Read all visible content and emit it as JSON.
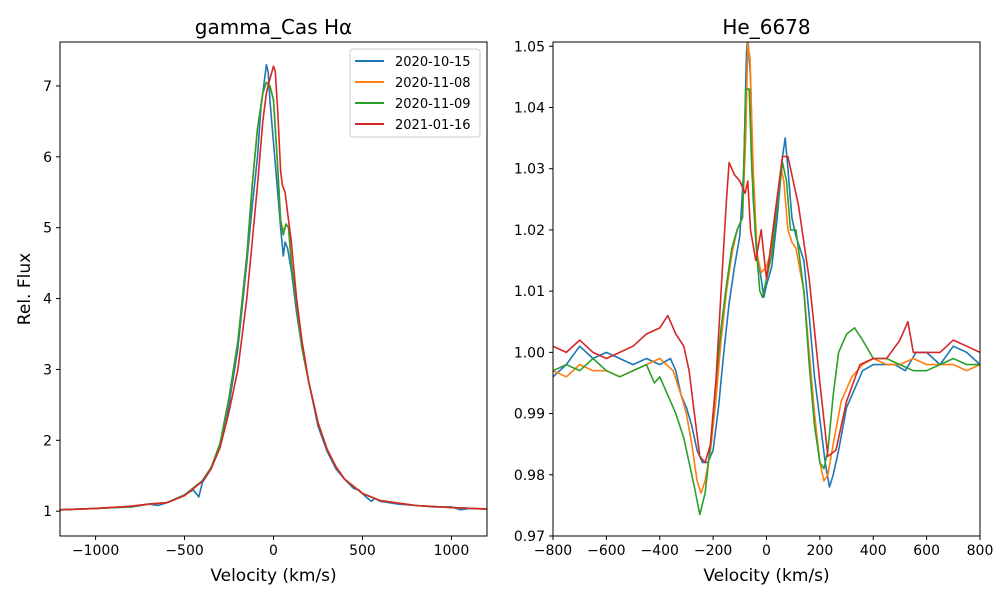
{
  "chart_data": [
    {
      "type": "line",
      "title": "gamma_Cas Hα",
      "xlabel": "Velocity (km/s)",
      "ylabel": "Rel. Flux",
      "xlim": [
        -1200,
        1200
      ],
      "ylim": [
        0.65,
        7.62
      ],
      "xticks": [
        -1000,
        -500,
        0,
        500,
        1000
      ],
      "xtick_labels": [
        "−1000",
        "−500",
        "0",
        "500",
        "1000"
      ],
      "yticks": [
        1,
        2,
        3,
        4,
        5,
        6,
        7
      ],
      "ytick_labels": [
        "1",
        "2",
        "3",
        "4",
        "5",
        "6",
        "7"
      ],
      "grid": false,
      "legend": "top-right",
      "series": [
        {
          "name": "2020-10-15",
          "color": "#1f77b4",
          "x": [
            -1200,
            -1000,
            -900,
            -800,
            -700,
            -650,
            -600,
            -500,
            -450,
            -420,
            -400,
            -350,
            -300,
            -250,
            -200,
            -150,
            -120,
            -90,
            -70,
            -50,
            -40,
            -30,
            -20,
            0,
            20,
            40,
            55,
            65,
            80,
            100,
            130,
            160,
            200,
            250,
            300,
            350,
            400,
            450,
            480,
            520,
            550,
            570,
            600,
            700,
            800,
            900,
            1000,
            1050,
            1100,
            1200
          ],
          "y": [
            1.02,
            1.04,
            1.05,
            1.06,
            1.1,
            1.08,
            1.12,
            1.23,
            1.3,
            1.2,
            1.4,
            1.6,
            1.95,
            2.5,
            3.3,
            4.5,
            5.3,
            6.0,
            6.7,
            7.1,
            7.3,
            7.2,
            6.8,
            6.2,
            5.6,
            5.0,
            4.6,
            4.8,
            4.7,
            4.4,
            3.8,
            3.3,
            2.8,
            2.2,
            1.85,
            1.6,
            1.45,
            1.32,
            1.3,
            1.2,
            1.14,
            1.18,
            1.14,
            1.1,
            1.08,
            1.06,
            1.06,
            1.02,
            1.04,
            1.03
          ]
        },
        {
          "name": "2020-11-08",
          "color": "#ff7f0e",
          "x": [
            -1200,
            -1000,
            -800,
            -700,
            -600,
            -500,
            -400,
            -350,
            -300,
            -250,
            -200,
            -150,
            -120,
            -90,
            -60,
            -40,
            -20,
            0,
            20,
            40,
            55,
            70,
            85,
            100,
            130,
            160,
            200,
            250,
            300,
            350,
            400,
            500,
            600,
            800,
            1000,
            1200
          ],
          "y": [
            1.02,
            1.04,
            1.07,
            1.1,
            1.12,
            1.22,
            1.42,
            1.62,
            1.95,
            2.6,
            3.4,
            4.6,
            5.6,
            6.4,
            6.9,
            7.05,
            7.0,
            6.8,
            6.0,
            5.1,
            4.95,
            5.05,
            5.0,
            4.5,
            3.9,
            3.3,
            2.8,
            2.25,
            1.88,
            1.63,
            1.45,
            1.25,
            1.15,
            1.08,
            1.05,
            1.03
          ]
        },
        {
          "name": "2020-11-09",
          "color": "#2ca02c",
          "x": [
            -1200,
            -1000,
            -800,
            -700,
            -600,
            -500,
            -400,
            -350,
            -300,
            -250,
            -200,
            -150,
            -120,
            -90,
            -60,
            -40,
            -20,
            0,
            20,
            40,
            55,
            70,
            85,
            100,
            130,
            160,
            200,
            250,
            300,
            350,
            400,
            500,
            600,
            800,
            1000,
            1200
          ],
          "y": [
            1.02,
            1.04,
            1.06,
            1.1,
            1.12,
            1.23,
            1.43,
            1.62,
            1.96,
            2.6,
            3.4,
            4.6,
            5.6,
            6.4,
            6.9,
            7.05,
            7.0,
            6.8,
            6.0,
            5.1,
            4.9,
            5.05,
            5.0,
            4.5,
            3.9,
            3.3,
            2.8,
            2.25,
            1.88,
            1.63,
            1.45,
            1.25,
            1.15,
            1.08,
            1.05,
            1.03
          ]
        },
        {
          "name": "2021-01-16",
          "color": "#d62728",
          "x": [
            -1200,
            -1000,
            -800,
            -700,
            -600,
            -500,
            -400,
            -350,
            -300,
            -250,
            -200,
            -150,
            -120,
            -90,
            -60,
            -40,
            -20,
            0,
            10,
            25,
            40,
            50,
            65,
            80,
            100,
            130,
            160,
            200,
            250,
            300,
            350,
            400,
            500,
            600,
            800,
            1000,
            1200
          ],
          "y": [
            1.02,
            1.04,
            1.07,
            1.1,
            1.12,
            1.22,
            1.42,
            1.6,
            1.9,
            2.4,
            3.0,
            4.0,
            4.8,
            5.6,
            6.5,
            6.9,
            7.1,
            7.28,
            7.2,
            6.6,
            5.8,
            5.6,
            5.5,
            5.2,
            4.8,
            4.0,
            3.4,
            2.8,
            2.25,
            1.88,
            1.63,
            1.45,
            1.25,
            1.15,
            1.08,
            1.05,
            1.03
          ]
        }
      ]
    },
    {
      "type": "line",
      "title": "He_6678",
      "xlabel": "Velocity (km/s)",
      "ylabel": "",
      "xlim": [
        -800,
        800
      ],
      "ylim": [
        0.97,
        1.0507
      ],
      "xticks": [
        -800,
        -600,
        -400,
        -200,
        0,
        200,
        400,
        600,
        800
      ],
      "xtick_labels": [
        "−800",
        "−600",
        "−400",
        "−200",
        "0",
        "200",
        "400",
        "600",
        "800"
      ],
      "yticks": [
        0.97,
        0.98,
        0.99,
        1.0,
        1.01,
        1.02,
        1.03,
        1.04,
        1.05
      ],
      "ytick_labels": [
        "0.97",
        "0.98",
        "0.99",
        "1.00",
        "1.01",
        "1.02",
        "1.03",
        "1.04",
        "1.05"
      ],
      "grid": false,
      "series": [
        {
          "name": "2020-10-15",
          "color": "#1f77b4",
          "x": [
            -800,
            -750,
            -700,
            -650,
            -600,
            -550,
            -500,
            -450,
            -400,
            -360,
            -340,
            -320,
            -300,
            -280,
            -260,
            -240,
            -220,
            -200,
            -180,
            -160,
            -140,
            -120,
            -100,
            -85,
            -75,
            -70,
            -60,
            -50,
            -35,
            -20,
            -10,
            0,
            20,
            40,
            60,
            70,
            80,
            95,
            110,
            140,
            160,
            180,
            200,
            220,
            236,
            250,
            270,
            300,
            330,
            360,
            400,
            440,
            480,
            520,
            560,
            600,
            650,
            700,
            750,
            800
          ],
          "y": [
            0.996,
            0.998,
            1.001,
            0.999,
            1.0,
            0.999,
            0.998,
            0.999,
            0.998,
            0.999,
            0.997,
            0.993,
            0.991,
            0.988,
            0.984,
            0.982,
            0.982,
            0.984,
            0.991,
            1.0,
            1.008,
            1.014,
            1.019,
            1.03,
            1.049,
            1.0515,
            1.045,
            1.025,
            1.016,
            1.012,
            1.009,
            1.011,
            1.014,
            1.022,
            1.032,
            1.035,
            1.03,
            1.022,
            1.019,
            1.015,
            1.006,
            0.996,
            0.989,
            0.982,
            0.978,
            0.98,
            0.984,
            0.991,
            0.994,
            0.997,
            0.998,
            0.998,
            0.998,
            0.997,
            1.0,
            1.0,
            0.998,
            1.001,
            1.0,
            0.998
          ]
        },
        {
          "name": "2020-11-08",
          "color": "#ff7f0e",
          "x": [
            -800,
            -750,
            -700,
            -650,
            -600,
            -550,
            -500,
            -450,
            -400,
            -350,
            -320,
            -300,
            -280,
            -260,
            -245,
            -230,
            -210,
            -190,
            -170,
            -150,
            -130,
            -110,
            -90,
            -78,
            -70,
            -62,
            -50,
            -35,
            -20,
            0,
            20,
            40,
            55,
            65,
            80,
            95,
            110,
            140,
            160,
            180,
            200,
            215,
            230,
            250,
            280,
            320,
            360,
            400,
            450,
            500,
            550,
            600,
            650,
            700,
            750,
            800
          ],
          "y": [
            0.997,
            0.996,
            0.998,
            0.997,
            0.997,
            0.996,
            0.997,
            0.998,
            0.999,
            0.997,
            0.993,
            0.99,
            0.985,
            0.979,
            0.977,
            0.979,
            0.984,
            0.992,
            1.002,
            1.01,
            1.016,
            1.02,
            1.022,
            1.035,
            1.0505,
            1.048,
            1.03,
            1.016,
            1.013,
            1.014,
            1.017,
            1.024,
            1.03,
            1.028,
            1.02,
            1.018,
            1.017,
            1.01,
            1.0,
            0.99,
            0.982,
            0.979,
            0.98,
            0.985,
            0.992,
            0.996,
            0.998,
            0.999,
            0.998,
            0.998,
            0.999,
            0.998,
            0.998,
            0.998,
            0.997,
            0.998
          ]
        },
        {
          "name": "2020-11-09",
          "color": "#2ca02c",
          "x": [
            -800,
            -750,
            -700,
            -650,
            -600,
            -550,
            -500,
            -450,
            -420,
            -400,
            -370,
            -340,
            -310,
            -290,
            -270,
            -250,
            -230,
            -210,
            -190,
            -170,
            -150,
            -130,
            -110,
            -90,
            -78,
            -65,
            -55,
            -40,
            -25,
            -15,
            0,
            20,
            40,
            60,
            75,
            90,
            110,
            140,
            160,
            180,
            200,
            215,
            230,
            250,
            270,
            300,
            330,
            360,
            400,
            450,
            500,
            550,
            600,
            650,
            700,
            750,
            800
          ],
          "y": [
            0.997,
            0.998,
            0.997,
            0.999,
            0.997,
            0.996,
            0.997,
            0.998,
            0.995,
            0.996,
            0.993,
            0.99,
            0.986,
            0.982,
            0.978,
            0.9735,
            0.977,
            0.985,
            0.995,
            1.004,
            1.011,
            1.017,
            1.02,
            1.022,
            1.043,
            1.043,
            1.03,
            1.018,
            1.01,
            1.009,
            1.012,
            1.016,
            1.024,
            1.031,
            1.028,
            1.02,
            1.02,
            1.01,
            0.998,
            0.988,
            0.982,
            0.981,
            0.984,
            0.993,
            1.0,
            1.003,
            1.004,
            1.002,
            0.999,
            0.999,
            0.998,
            0.997,
            0.997,
            0.998,
            0.999,
            0.998,
            0.998
          ]
        },
        {
          "name": "2021-01-16",
          "color": "#d62728",
          "x": [
            -800,
            -750,
            -700,
            -650,
            -600,
            -550,
            -500,
            -450,
            -400,
            -370,
            -340,
            -310,
            -290,
            -270,
            -250,
            -230,
            -210,
            -190,
            -170,
            -150,
            -140,
            -120,
            -100,
            -80,
            -70,
            -60,
            -40,
            -20,
            0,
            30,
            60,
            80,
            120,
            160,
            200,
            230,
            260,
            300,
            350,
            400,
            450,
            500,
            530,
            550,
            600,
            650,
            700,
            750,
            800
          ],
          "y": [
            1.001,
            1.0,
            1.002,
            1.0,
            0.999,
            1.0,
            1.001,
            1.003,
            1.004,
            1.006,
            1.003,
            1.001,
            0.997,
            0.99,
            0.983,
            0.982,
            0.985,
            0.995,
            1.01,
            1.025,
            1.031,
            1.029,
            1.028,
            1.026,
            1.028,
            1.02,
            1.015,
            1.02,
            1.012,
            1.022,
            1.032,
            1.032,
            1.024,
            1.012,
            0.995,
            0.983,
            0.984,
            0.992,
            0.998,
            0.999,
            0.999,
            1.002,
            1.005,
            1.0,
            1.0,
            1.0,
            1.002,
            1.001,
            1.0
          ]
        }
      ]
    }
  ]
}
